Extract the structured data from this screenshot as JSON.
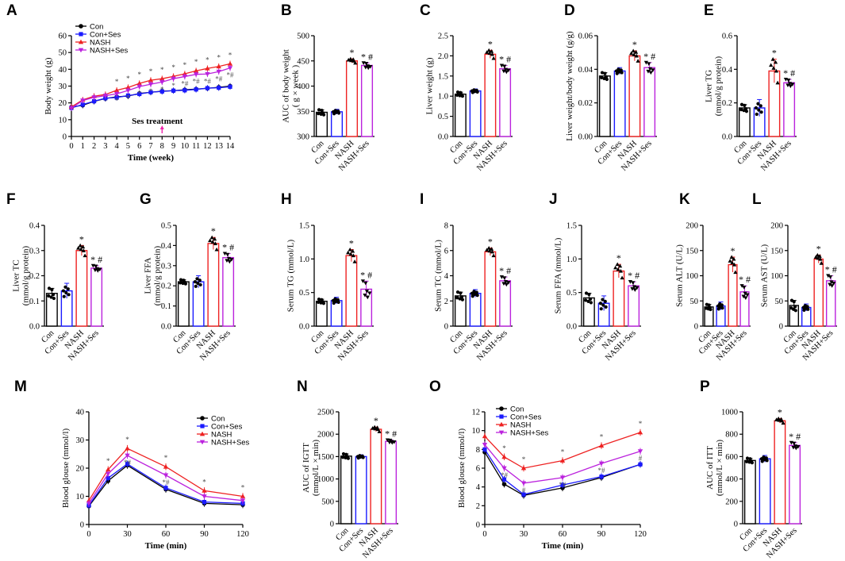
{
  "figure": {
    "colors": {
      "Con": "#000000",
      "Con+Ses": "#1a1aff",
      "NASH": "#ee2222",
      "NASH+Ses": "#bb22dd",
      "axis": "#000000"
    },
    "annotation": {
      "text": "Ses treatment",
      "arrow_color": "#ee22aa"
    }
  },
  "chart_data": [
    {
      "id": "A",
      "type": "line",
      "panel_label": "A",
      "xlabel": "Time (week)",
      "ylabel": "Body weight (g)",
      "xlim": [
        0,
        14
      ],
      "ylim": [
        0,
        60
      ],
      "xticks": [
        0,
        1,
        2,
        3,
        4,
        5,
        6,
        7,
        8,
        9,
        10,
        11,
        12,
        13,
        14
      ],
      "xtick_labels": [
        "0",
        "1",
        "2",
        "3",
        "4",
        "5",
        "6",
        "7",
        "8",
        "9",
        "10",
        "11",
        "12",
        "13",
        "14"
      ],
      "yticks": [
        0,
        10,
        20,
        30,
        40,
        50,
        60
      ],
      "ytick_labels": [
        "0",
        "10",
        "20",
        "30",
        "40",
        "50",
        "60"
      ],
      "x": [
        0,
        1,
        2,
        3,
        4,
        5,
        6,
        7,
        8,
        9,
        10,
        11,
        12,
        13,
        14
      ],
      "legend_position": "top-left",
      "series": [
        {
          "name": "Con",
          "values": [
            17.5,
            18.6,
            20.9,
            22.6,
            23.6,
            24.1,
            25.6,
            26.3,
            27.0,
            27.3,
            27.8,
            28.2,
            28.7,
            29.3,
            30.0
          ],
          "sig": []
        },
        {
          "name": "Con+Ses",
          "values": [
            17.0,
            19.0,
            21.0,
            22.8,
            23.2,
            24.4,
            25.3,
            26.4,
            26.8,
            27.3,
            27.5,
            28.0,
            28.8,
            29.0,
            29.6
          ],
          "sig": []
        },
        {
          "name": "NASH",
          "values": [
            17.6,
            21.8,
            24.0,
            25.0,
            27.5,
            29.2,
            31.6,
            33.5,
            34.4,
            35.8,
            37.3,
            39.1,
            40.5,
            41.7,
            43.3
          ],
          "sig": [
            "",
            "",
            "",
            "",
            "*",
            "*",
            "*",
            "*",
            "*",
            "*",
            "*",
            "*",
            "*",
            "*",
            "*"
          ]
        },
        {
          "name": "NASH+Ses",
          "values": [
            16.9,
            21.4,
            23.3,
            24.3,
            25.4,
            27.4,
            29.7,
            31.1,
            32.4,
            34.4,
            35.7,
            37.0,
            37.2,
            38.6,
            40.8
          ],
          "sig": [
            "",
            "",
            "",
            "",
            "*",
            "*",
            "*",
            "*",
            "*",
            "*",
            "*#",
            "*#",
            "*#",
            "*#",
            "*#"
          ]
        }
      ],
      "annotation": "Ses treatment",
      "annotation_x": 8
    },
    {
      "id": "B",
      "type": "bar",
      "panel_label": "B",
      "ylabel": "AUC of body weight\n( g × week )",
      "categories": [
        "Con",
        "Con+Ses",
        "NASH",
        "NASH+Ses"
      ],
      "values": [
        348,
        349,
        450,
        441
      ],
      "errors": [
        5,
        5,
        4,
        5
      ],
      "ylim": [
        300,
        500
      ],
      "yticks": [
        300,
        350,
        400,
        450,
        500
      ],
      "ytick_labels": [
        "300",
        "350",
        "400",
        "450",
        "500"
      ],
      "sig": [
        "",
        "",
        "*",
        "*#"
      ]
    },
    {
      "id": "C",
      "type": "bar",
      "panel_label": "C",
      "ylabel": "Liver weight (g)",
      "categories": [
        "Con",
        "Con+Ses",
        "NASH",
        "NASH+Ses"
      ],
      "values": [
        1.05,
        1.13,
        2.04,
        1.68
      ],
      "errors": [
        0.05,
        0.05,
        0.1,
        0.08
      ],
      "ylim": [
        0,
        2.5
      ],
      "yticks": [
        0,
        0.5,
        1.0,
        1.5,
        2.0,
        2.5
      ],
      "ytick_labels": [
        "0.0",
        "0.5",
        "1.0",
        "1.5",
        "2.0",
        "2.5"
      ],
      "sig": [
        "",
        "",
        "*",
        "*#"
      ]
    },
    {
      "id": "D",
      "type": "bar",
      "panel_label": "D",
      "ylabel": "Liver weight/body weight (g/g)",
      "categories": [
        "Con",
        "Con+Ses",
        "NASH",
        "NASH+Ses"
      ],
      "values": [
        0.036,
        0.039,
        0.048,
        0.041
      ],
      "errors": [
        0.002,
        0.002,
        0.003,
        0.003
      ],
      "ylim": [
        0,
        0.06
      ],
      "yticks": [
        0,
        0.02,
        0.04,
        0.06
      ],
      "ytick_labels": [
        "0.00",
        "0.02",
        "0.04",
        "0.06"
      ],
      "sig": [
        "",
        "",
        "*",
        "*#"
      ]
    },
    {
      "id": "E",
      "type": "bar",
      "panel_label": "E",
      "ylabel": "Liver TG\n(mmol/g protein)",
      "categories": [
        "Con",
        "Con+Ses",
        "NASH",
        "NASH+Ses"
      ],
      "values": [
        0.17,
        0.17,
        0.39,
        0.32
      ],
      "errors": [
        0.02,
        0.05,
        0.07,
        0.02
      ],
      "ylim": [
        0,
        0.6
      ],
      "yticks": [
        0,
        0.2,
        0.4,
        0.6
      ],
      "ytick_labels": [
        "0.0",
        "0.2",
        "0.4",
        "0.6"
      ],
      "sig": [
        "",
        "",
        "*",
        "*#"
      ]
    },
    {
      "id": "F",
      "type": "bar",
      "panel_label": "F",
      "ylabel": "Liver TC\n(mmol/g protein)",
      "categories": [
        "Con",
        "Con+Ses",
        "NASH",
        "NASH+Ses"
      ],
      "values": [
        0.13,
        0.14,
        0.3,
        0.23
      ],
      "errors": [
        0.02,
        0.03,
        0.02,
        0.01
      ],
      "ylim": [
        0,
        0.4
      ],
      "yticks": [
        0,
        0.1,
        0.2,
        0.3,
        0.4
      ],
      "ytick_labels": [
        "0.0",
        "0.1",
        "0.2",
        "0.3",
        "0.4"
      ],
      "sig": [
        "",
        "",
        "*",
        "*#"
      ]
    },
    {
      "id": "G",
      "type": "bar",
      "panel_label": "G",
      "ylabel": "Liver FFA\n(mmol/g protein)",
      "categories": [
        "Con",
        "Con+Ses",
        "NASH",
        "NASH+Ses"
      ],
      "values": [
        0.22,
        0.22,
        0.41,
        0.34
      ],
      "errors": [
        0.01,
        0.03,
        0.03,
        0.02
      ],
      "ylim": [
        0,
        0.5
      ],
      "yticks": [
        0,
        0.1,
        0.2,
        0.3,
        0.4,
        0.5
      ],
      "ytick_labels": [
        "0.0",
        "0.1",
        "0.2",
        "0.3",
        "0.4",
        "0.5"
      ],
      "sig": [
        "",
        "",
        "*",
        "*#"
      ]
    },
    {
      "id": "H",
      "type": "bar",
      "panel_label": "H",
      "ylabel": "Serum TG (mmol/L)",
      "categories": [
        "Con",
        "Con+Ses",
        "NASH",
        "NASH+Ses"
      ],
      "values": [
        0.37,
        0.38,
        1.05,
        0.55
      ],
      "errors": [
        0.03,
        0.05,
        0.09,
        0.12
      ],
      "ylim": [
        0,
        1.5
      ],
      "yticks": [
        0,
        0.5,
        1.0,
        1.5
      ],
      "ytick_labels": [
        "0.0",
        "0.5",
        "1.0",
        "1.5"
      ],
      "sig": [
        "",
        "",
        "*",
        "*#"
      ]
    },
    {
      "id": "I",
      "type": "bar",
      "panel_label": "I",
      "ylabel": "Serum TC (mmol/L)",
      "categories": [
        "Con",
        "Con+Ses",
        "NASH",
        "NASH+Ses"
      ],
      "values": [
        2.4,
        2.6,
        5.9,
        3.6
      ],
      "errors": [
        0.3,
        0.3,
        0.3,
        0.3
      ],
      "ylim": [
        0,
        8
      ],
      "yticks": [
        0,
        2,
        4,
        6,
        8
      ],
      "ytick_labels": [
        "0",
        "2",
        "4",
        "6",
        "8"
      ],
      "sig": [
        "",
        "",
        "*",
        "*#"
      ]
    },
    {
      "id": "J",
      "type": "bar",
      "panel_label": "J",
      "ylabel": "Serum FFA (mmol/L)",
      "categories": [
        "Con",
        "Con+Ses",
        "NASH",
        "NASH+Ses"
      ],
      "values": [
        0.42,
        0.34,
        0.82,
        0.6
      ],
      "errors": [
        0.07,
        0.11,
        0.1,
        0.06
      ],
      "ylim": [
        0,
        1.5
      ],
      "yticks": [
        0,
        0.5,
        1.0,
        1.5
      ],
      "ytick_labels": [
        "0.0",
        "0.5",
        "1.0",
        "1.5"
      ],
      "sig": [
        "",
        "",
        "*",
        "*#"
      ]
    },
    {
      "id": "K",
      "type": "bar",
      "panel_label": "K",
      "ylabel": "Serum ALT (U/L)",
      "categories": [
        "Con",
        "Con+Ses",
        "NASH",
        "NASH+Ses"
      ],
      "values": [
        38,
        40,
        122,
        68
      ],
      "errors": [
        5,
        8,
        15,
        12
      ],
      "ylim": [
        0,
        200
      ],
      "yticks": [
        0,
        50,
        100,
        150,
        200
      ],
      "ytick_labels": [
        "0",
        "50",
        "100",
        "150",
        "200"
      ],
      "sig": [
        "",
        "",
        "*",
        "*#"
      ]
    },
    {
      "id": "L",
      "type": "bar",
      "panel_label": "L",
      "ylabel": "Serum AST (U/L)",
      "categories": [
        "Con",
        "Con+Ses",
        "NASH",
        "NASH+Ses"
      ],
      "values": [
        41,
        37,
        133,
        90
      ],
      "errors": [
        10,
        7,
        8,
        10
      ],
      "ylim": [
        0,
        200
      ],
      "yticks": [
        0,
        50,
        100,
        150,
        200
      ],
      "ytick_labels": [
        "0",
        "50",
        "100",
        "150",
        "200"
      ],
      "sig": [
        "",
        "",
        "*",
        "*#"
      ]
    },
    {
      "id": "M",
      "type": "line",
      "panel_label": "M",
      "xlabel": "Time (min)",
      "ylabel": "Blood glouse (mmol/l)",
      "xlim": [
        0,
        120
      ],
      "ylim": [
        0,
        40
      ],
      "xticks": [
        0,
        30,
        60,
        90,
        120
      ],
      "xtick_labels": [
        "0",
        "30",
        "60",
        "90",
        "120"
      ],
      "yticks": [
        0,
        10,
        20,
        30,
        40
      ],
      "ytick_labels": [
        "0",
        "10",
        "20",
        "30",
        "40"
      ],
      "x": [
        0,
        15,
        30,
        60,
        90,
        120
      ],
      "legend_position": "top-right",
      "series": [
        {
          "name": "Con",
          "values": [
            6.5,
            15.5,
            21.0,
            12.5,
            7.5,
            7.0
          ],
          "sig": []
        },
        {
          "name": "Con+Ses",
          "values": [
            6.8,
            16.5,
            21.5,
            13.0,
            8.0,
            7.5
          ],
          "sig": []
        },
        {
          "name": "NASH",
          "values": [
            8.5,
            19.5,
            27.0,
            20.5,
            12.0,
            10.0
          ],
          "sig": [
            "",
            "*",
            "*",
            "*",
            "*",
            "*"
          ]
        },
        {
          "name": "NASH+Ses",
          "values": [
            7.5,
            18.0,
            24.5,
            17.5,
            10.0,
            8.5
          ],
          "sig": [
            "",
            "",
            "*#",
            "*#",
            "",
            ""
          ]
        }
      ]
    },
    {
      "id": "N",
      "type": "bar",
      "panel_label": "N",
      "ylabel": "AUC of IGTT\n(mmol/L × min)",
      "categories": [
        "Con",
        "Con+Ses",
        "NASH",
        "NASH+Ses"
      ],
      "values": [
        1510,
        1500,
        2110,
        1840
      ],
      "errors": [
        50,
        40,
        50,
        30
      ],
      "ylim": [
        0,
        2500
      ],
      "yticks": [
        0,
        500,
        1000,
        1500,
        2000,
        2500
      ],
      "ytick_labels": [
        "0",
        "500",
        "1000",
        "1500",
        "2000",
        "2500"
      ],
      "sig": [
        "",
        "",
        "*",
        "*#"
      ]
    },
    {
      "id": "O",
      "type": "line",
      "panel_label": "O",
      "xlabel": "Time (min)",
      "ylabel": "Blood glouse (mmol/l)",
      "xlim": [
        0,
        120
      ],
      "ylim": [
        0,
        12
      ],
      "xticks": [
        0,
        30,
        60,
        90,
        120
      ],
      "xtick_labels": [
        "0",
        "30",
        "60",
        "90",
        "120"
      ],
      "yticks": [
        0,
        2,
        4,
        6,
        8,
        10,
        12
      ],
      "ytick_labels": [
        "0",
        "2",
        "4",
        "6",
        "8",
        "10",
        "12"
      ],
      "x": [
        0,
        15,
        30,
        60,
        90,
        120
      ],
      "legend_position": "top-left",
      "series": [
        {
          "name": "Con",
          "values": [
            7.7,
            4.3,
            3.1,
            3.9,
            5.0,
            6.4
          ],
          "sig": []
        },
        {
          "name": "Con+Ses",
          "values": [
            8.0,
            4.8,
            3.2,
            4.2,
            5.1,
            6.4
          ],
          "sig": []
        },
        {
          "name": "NASH",
          "values": [
            9.4,
            7.2,
            6.0,
            6.8,
            8.4,
            9.8
          ],
          "sig": [
            "",
            "*",
            "*",
            "*",
            "*",
            "*"
          ]
        },
        {
          "name": "NASH+Ses",
          "values": [
            8.5,
            6.0,
            4.4,
            5.0,
            6.5,
            7.8
          ],
          "sig": [
            "",
            "*#",
            "#",
            "*#",
            "*#",
            "#"
          ]
        }
      ]
    },
    {
      "id": "P",
      "type": "bar",
      "panel_label": "P",
      "ylabel": "AUC of ITT\n(mmol/L × min)",
      "categories": [
        "Con",
        "Con+Ses",
        "NASH",
        "NASH+Ses"
      ],
      "values": [
        565,
        580,
        920,
        700
      ],
      "errors": [
        20,
        30,
        20,
        25
      ],
      "ylim": [
        0,
        1000
      ],
      "yticks": [
        0,
        200,
        400,
        600,
        800,
        1000
      ],
      "ytick_labels": [
        "0",
        "200",
        "400",
        "600",
        "800",
        "1000"
      ],
      "sig": [
        "",
        "",
        "*",
        "*#"
      ]
    }
  ]
}
